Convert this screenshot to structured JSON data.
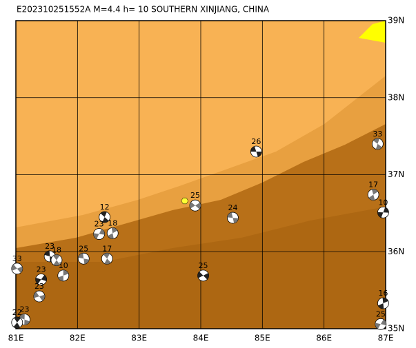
{
  "map": {
    "title": "E202310251552A M=4.4 h= 10 SOUTHERN XINJIANG, CHINA",
    "xlim": [
      81,
      87
    ],
    "ylim": [
      35,
      39
    ],
    "xticks": [
      {
        "value": 81,
        "label": "81E"
      },
      {
        "value": 82,
        "label": "82E"
      },
      {
        "value": 83,
        "label": "83E"
      },
      {
        "value": 84,
        "label": "84E"
      },
      {
        "value": 85,
        "label": "85E"
      },
      {
        "value": 86,
        "label": "86E"
      },
      {
        "value": 87,
        "label": "87E"
      }
    ],
    "yticks": [
      {
        "value": 35,
        "label": "35N"
      },
      {
        "value": 36,
        "label": "36N"
      },
      {
        "value": 37,
        "label": "37N"
      },
      {
        "value": 38,
        "label": "38N"
      },
      {
        "value": 39,
        "label": "39N"
      }
    ],
    "epicenter": {
      "lon": 83.74,
      "lat": 36.66,
      "color": "#ffff33"
    },
    "events": [
      {
        "label": "26",
        "lon": 84.9,
        "lat": 37.3
      },
      {
        "label": "33",
        "lon": 86.87,
        "lat": 37.4
      },
      {
        "label": "17",
        "lon": 86.8,
        "lat": 36.74
      },
      {
        "label": "10",
        "lon": 86.96,
        "lat": 36.51
      },
      {
        "label": "25",
        "lon": 83.91,
        "lat": 36.6
      },
      {
        "label": "24",
        "lon": 84.52,
        "lat": 36.44
      },
      {
        "label": "12",
        "lon": 82.44,
        "lat": 36.45
      },
      {
        "label": "18",
        "lon": 82.57,
        "lat": 36.24
      },
      {
        "label": "23",
        "lon": 82.35,
        "lat": 36.23
      },
      {
        "label": "25",
        "lon": 84.04,
        "lat": 35.69
      },
      {
        "label": "25",
        "lon": 82.1,
        "lat": 35.91
      },
      {
        "label": "17",
        "lon": 82.48,
        "lat": 35.91
      },
      {
        "label": "16",
        "lon": 86.96,
        "lat": 35.33
      },
      {
        "label": "25",
        "lon": 86.92,
        "lat": 35.06
      },
      {
        "label": "33",
        "lon": 81.02,
        "lat": 35.78
      },
      {
        "label": "23",
        "lon": 81.55,
        "lat": 35.94
      },
      {
        "label": "18",
        "lon": 81.66,
        "lat": 35.89
      },
      {
        "label": "10",
        "lon": 81.77,
        "lat": 35.69
      },
      {
        "label": "23",
        "lon": 81.41,
        "lat": 35.64
      },
      {
        "label": "23",
        "lon": 81.38,
        "lat": 35.42
      },
      {
        "label": "23",
        "lon": 81.14,
        "lat": 35.12
      },
      {
        "label": "22",
        "lon": 81.02,
        "lat": 35.08
      }
    ]
  }
}
